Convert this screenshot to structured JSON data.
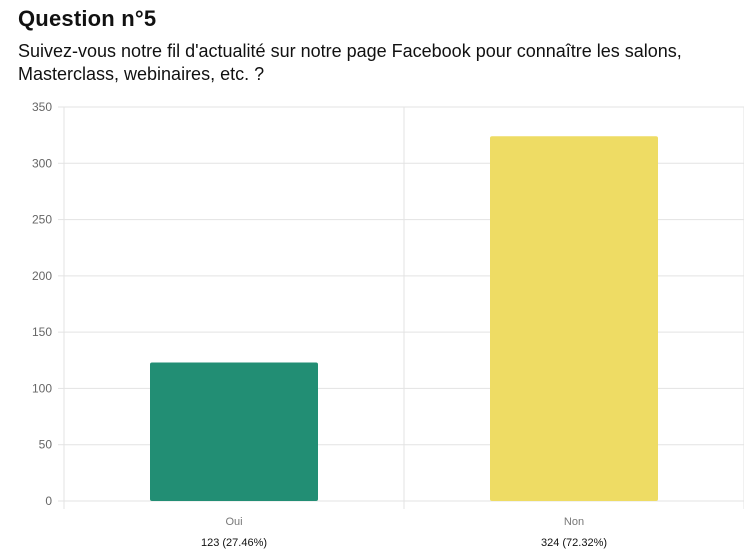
{
  "header": {
    "title": "Question n°5",
    "question": "Suivez-vous notre fil d'actualité sur notre page Facebook pour connaître les salons, Masterclass, webinaires, etc. ?"
  },
  "chart_data": {
    "type": "bar",
    "categories": [
      "Oui",
      "Non"
    ],
    "values": [
      123,
      324
    ],
    "value_labels": [
      "123 (27.46%)",
      "324 (72.32%)"
    ],
    "colors": [
      "#228e74",
      "#eedc64"
    ],
    "ylim": [
      0,
      350
    ],
    "yticks": [
      "0",
      "50",
      "100",
      "150",
      "200",
      "250",
      "300",
      "350"
    ],
    "grid": true
  }
}
